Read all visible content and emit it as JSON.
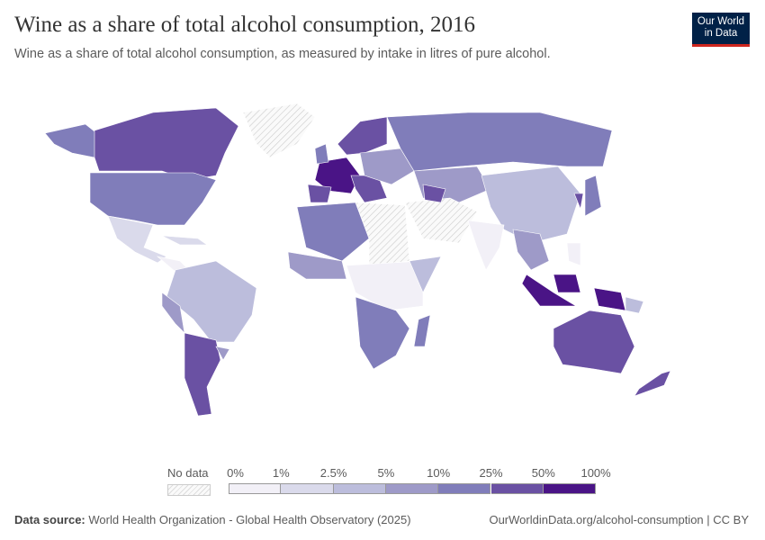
{
  "header": {
    "title": "Wine as a share of total alcohol consumption, 2016",
    "subtitle": "Wine as a share of total alcohol consumption, as measured by intake in litres of pure alcohol.",
    "logo": "Our World in Data"
  },
  "legend": {
    "no_data": "No data",
    "bins": [
      "0%",
      "1%",
      "2.5%",
      "5%",
      "10%",
      "25%",
      "50%",
      "100%"
    ],
    "colors": [
      "#f2f0f7",
      "#dadaeb",
      "#bcbddc",
      "#9e9ac8",
      "#807dba",
      "#6a51a3",
      "#4a1486"
    ],
    "no_data_color": "#e6e6e6"
  },
  "footer": {
    "source_label": "Data source:",
    "source": "World Health Organization - Global Health Observatory (2025)",
    "url": "OurWorldinData.org/alcohol-consumption | CC BY"
  }
}
